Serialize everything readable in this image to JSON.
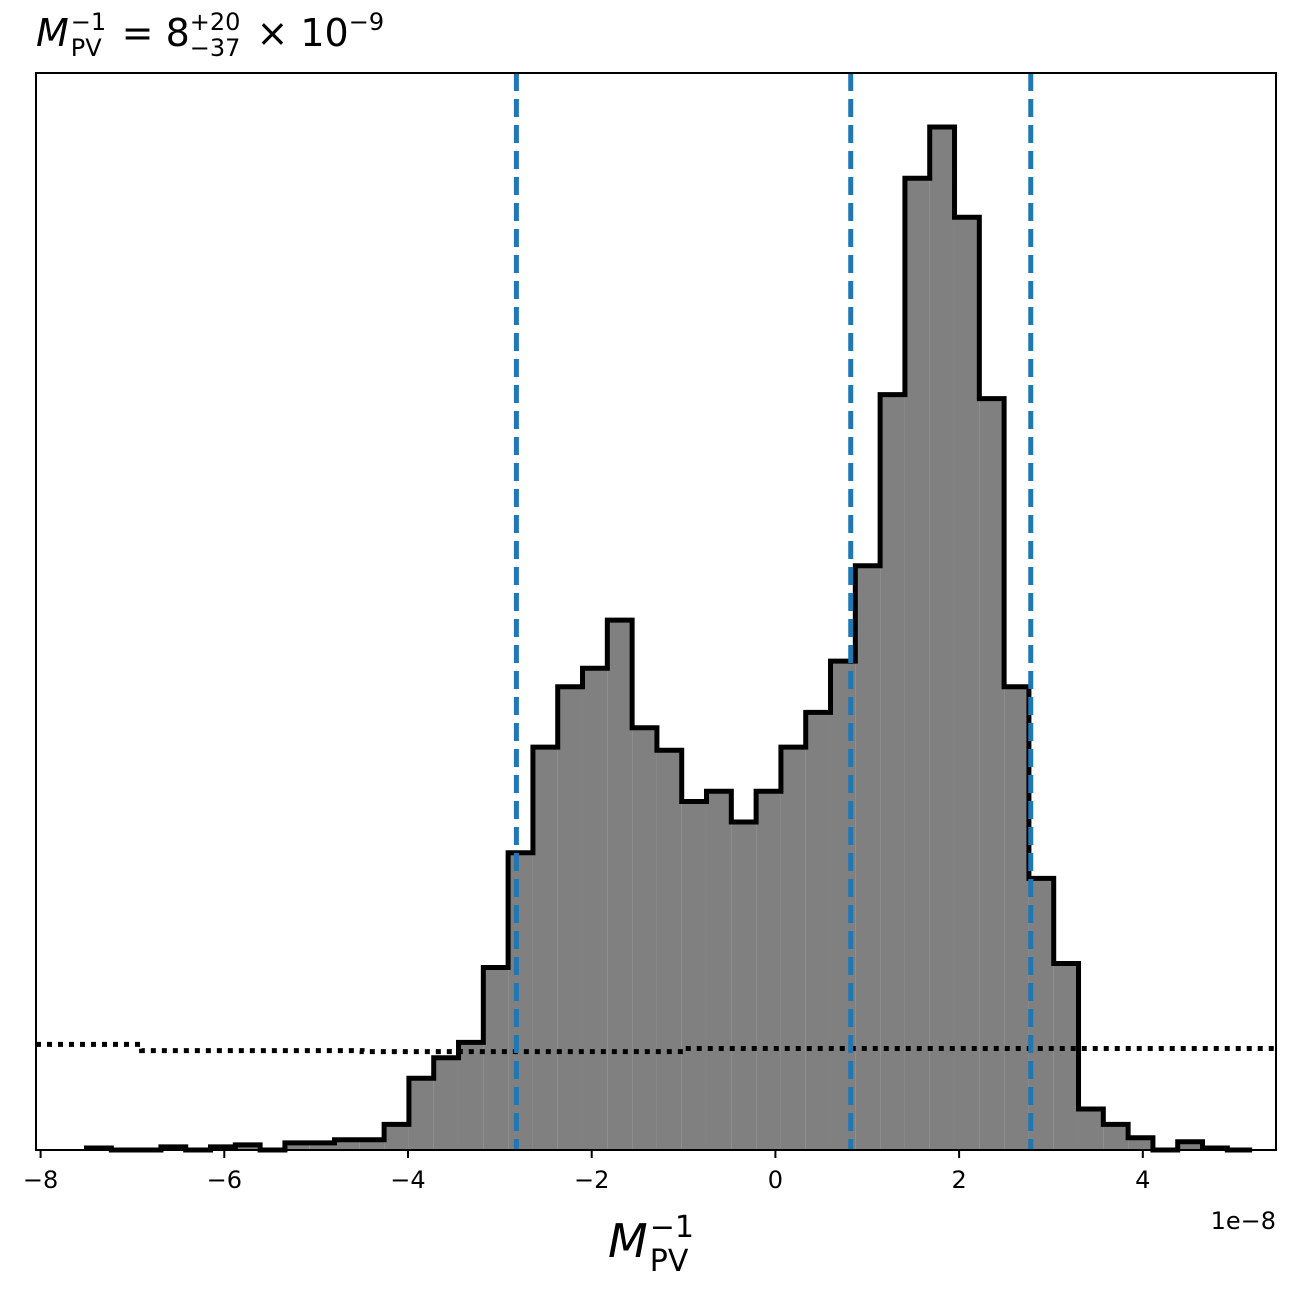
{
  "chart_data": {
    "type": "histogram",
    "title": {
      "symbol": "M",
      "sub": "PV",
      "sup": "−1",
      "eq": " = 8",
      "err_plus": "+20",
      "err_minus": "−37",
      "times": " × 10",
      "exp": "−9"
    },
    "xlabel": {
      "symbol": "M",
      "sub": "PV",
      "sup": "−1"
    },
    "x_offset_label": "1e−8",
    "xlim": [
      -8.05,
      5.45
    ],
    "ylim": [
      0,
      1.0
    ],
    "x_ticks": [
      -8,
      -6,
      -4,
      -2,
      0,
      2,
      4
    ],
    "x_tick_labels": [
      "−8",
      "−6",
      "−4",
      "−2",
      "0",
      "2",
      "4"
    ],
    "bin_edges": [
      -7.5,
      -7.23,
      -6.96,
      -6.69,
      -6.42,
      -6.15,
      -5.88,
      -5.61,
      -5.34,
      -5.07,
      -4.8,
      -4.53,
      -4.26,
      -3.99,
      -3.72,
      -3.45,
      -3.18,
      -2.91,
      -2.64,
      -2.37,
      -2.1,
      -1.83,
      -1.56,
      -1.29,
      -1.02,
      -0.75,
      -0.48,
      -0.21,
      0.06,
      0.33,
      0.6,
      0.87,
      1.14,
      1.41,
      1.68,
      1.95,
      2.22,
      2.49,
      2.76,
      3.03,
      3.3,
      3.57,
      3.84,
      4.11,
      4.38,
      4.65,
      4.92,
      5.19
    ],
    "counts": [
      0.002,
      0.0,
      0.0,
      0.003,
      0.0,
      0.003,
      0.005,
      0.0,
      0.007,
      0.007,
      0.01,
      0.01,
      0.025,
      0.07,
      0.09,
      0.105,
      0.178,
      0.29,
      0.393,
      0.452,
      0.47,
      0.517,
      0.412,
      0.39,
      0.34,
      0.35,
      0.32,
      0.35,
      0.393,
      0.427,
      0.477,
      0.57,
      0.737,
      0.948,
      0.998,
      0.91,
      0.733,
      0.452,
      0.265,
      0.182,
      0.04,
      0.025,
      0.012,
      0.0,
      0.008,
      0.002,
      0.0
    ],
    "hist_color": "#808080",
    "hist_edge_color": "#000000",
    "quantile_lines": [
      -2.82,
      0.82,
      2.78
    ],
    "quantile_color": "#1f77b4",
    "prior_line": {
      "x": [
        -8.05,
        -6.9,
        -6.9,
        -4.5,
        -4.5,
        -1.0,
        -1.0,
        5.45
      ],
      "y": [
        0.103,
        0.103,
        0.097,
        0.097,
        0.096,
        0.096,
        0.099,
        0.099
      ]
    }
  }
}
